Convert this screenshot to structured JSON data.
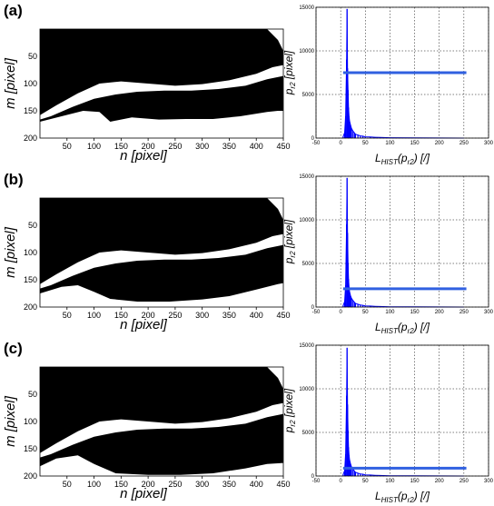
{
  "panels": [
    {
      "label": "(a)",
      "mask": {
        "xlabel": "n [pixel]",
        "ylabel": "m [pixel]",
        "xticks": [
          "50",
          "100",
          "150",
          "200",
          "250",
          "300",
          "350",
          "400",
          "450"
        ],
        "yticks": [
          "50",
          "100",
          "150",
          "200"
        ]
      },
      "chart_data": {
        "type": "line",
        "xlabel": "L_HIST(p_r2) [/]",
        "ylabel": "p_r2 [pixel]",
        "xlim": [
          -50,
          300
        ],
        "ylim": [
          0,
          15000
        ],
        "xticks": [
          "-50",
          "0",
          "50",
          "100",
          "150",
          "200",
          "250",
          "300"
        ],
        "yticks": [
          "0",
          "5000",
          "10000",
          "15000"
        ],
        "grid": true,
        "threshold": 7500,
        "histogram": {
          "x": [
            5,
            8,
            10,
            12,
            13,
            14,
            15,
            16,
            17,
            18,
            20,
            22,
            25,
            28,
            30,
            35,
            40,
            45,
            50,
            60,
            70,
            80,
            100,
            150,
            200,
            250
          ],
          "y": [
            200,
            600,
            2500,
            9000,
            14800,
            8000,
            5500,
            3500,
            2500,
            2000,
            1500,
            1100,
            800,
            600,
            450,
            350,
            250,
            220,
            150,
            120,
            90,
            70,
            40,
            20,
            10,
            5
          ]
        }
      }
    },
    {
      "label": "(b)",
      "mask": {
        "xlabel": "n [pixel]",
        "ylabel": "m [pixel]",
        "xticks": [
          "50",
          "100",
          "150",
          "200",
          "250",
          "300",
          "350",
          "400",
          "450"
        ],
        "yticks": [
          "50",
          "100",
          "150",
          "200"
        ]
      },
      "chart_data": {
        "type": "line",
        "xlabel": "L_HIST(p_r2) [/]",
        "ylabel": "p_r2 [pixel]",
        "xlim": [
          -50,
          300
        ],
        "ylim": [
          0,
          15000
        ],
        "xticks": [
          "-50",
          "0",
          "50",
          "100",
          "150",
          "200",
          "250",
          "300"
        ],
        "yticks": [
          "0",
          "5000",
          "10000",
          "15000"
        ],
        "grid": true,
        "threshold": 2100,
        "histogram": {
          "x": [
            5,
            8,
            10,
            12,
            13,
            14,
            15,
            16,
            17,
            18,
            20,
            22,
            25,
            28,
            30,
            35,
            40,
            45,
            50,
            60,
            70,
            80,
            100,
            150,
            200,
            250
          ],
          "y": [
            200,
            600,
            2500,
            9500,
            14800,
            8500,
            5000,
            3200,
            2300,
            1800,
            1300,
            1000,
            750,
            550,
            420,
            320,
            240,
            200,
            140,
            110,
            80,
            60,
            35,
            18,
            8,
            5
          ]
        }
      }
    },
    {
      "label": "(c)",
      "mask": {
        "xlabel": "n [pixel]",
        "ylabel": "m [pixel]",
        "xticks": [
          "50",
          "100",
          "150",
          "200",
          "250",
          "300",
          "350",
          "400",
          "450"
        ],
        "yticks": [
          "50",
          "100",
          "150",
          "200"
        ]
      },
      "chart_data": {
        "type": "line",
        "xlabel": "L_HIST(p_r2) [/]",
        "ylabel": "p_r2 [pixel]",
        "xlim": [
          -50,
          300
        ],
        "ylim": [
          0,
          15000
        ],
        "xticks": [
          "-50",
          "0",
          "50",
          "100",
          "150",
          "200",
          "250",
          "300"
        ],
        "yticks": [
          "0",
          "5000",
          "10000",
          "15000"
        ],
        "grid": true,
        "threshold": 900,
        "histogram": {
          "x": [
            5,
            8,
            10,
            12,
            13,
            14,
            15,
            16,
            17,
            18,
            20,
            22,
            25,
            28,
            30,
            35,
            40,
            45,
            50,
            60,
            70,
            80,
            100,
            150,
            200,
            250
          ],
          "y": [
            200,
            600,
            2500,
            9200,
            14700,
            8200,
            5200,
            3300,
            2400,
            1900,
            1400,
            1050,
            780,
            580,
            430,
            330,
            240,
            210,
            140,
            110,
            80,
            60,
            35,
            18,
            8,
            5
          ]
        }
      }
    }
  ],
  "colors": {
    "mask_fill": "#000000",
    "band": "#ffffff",
    "histogram": "#0000ff",
    "threshold_line": "#3060e0",
    "grid": "#000000"
  }
}
